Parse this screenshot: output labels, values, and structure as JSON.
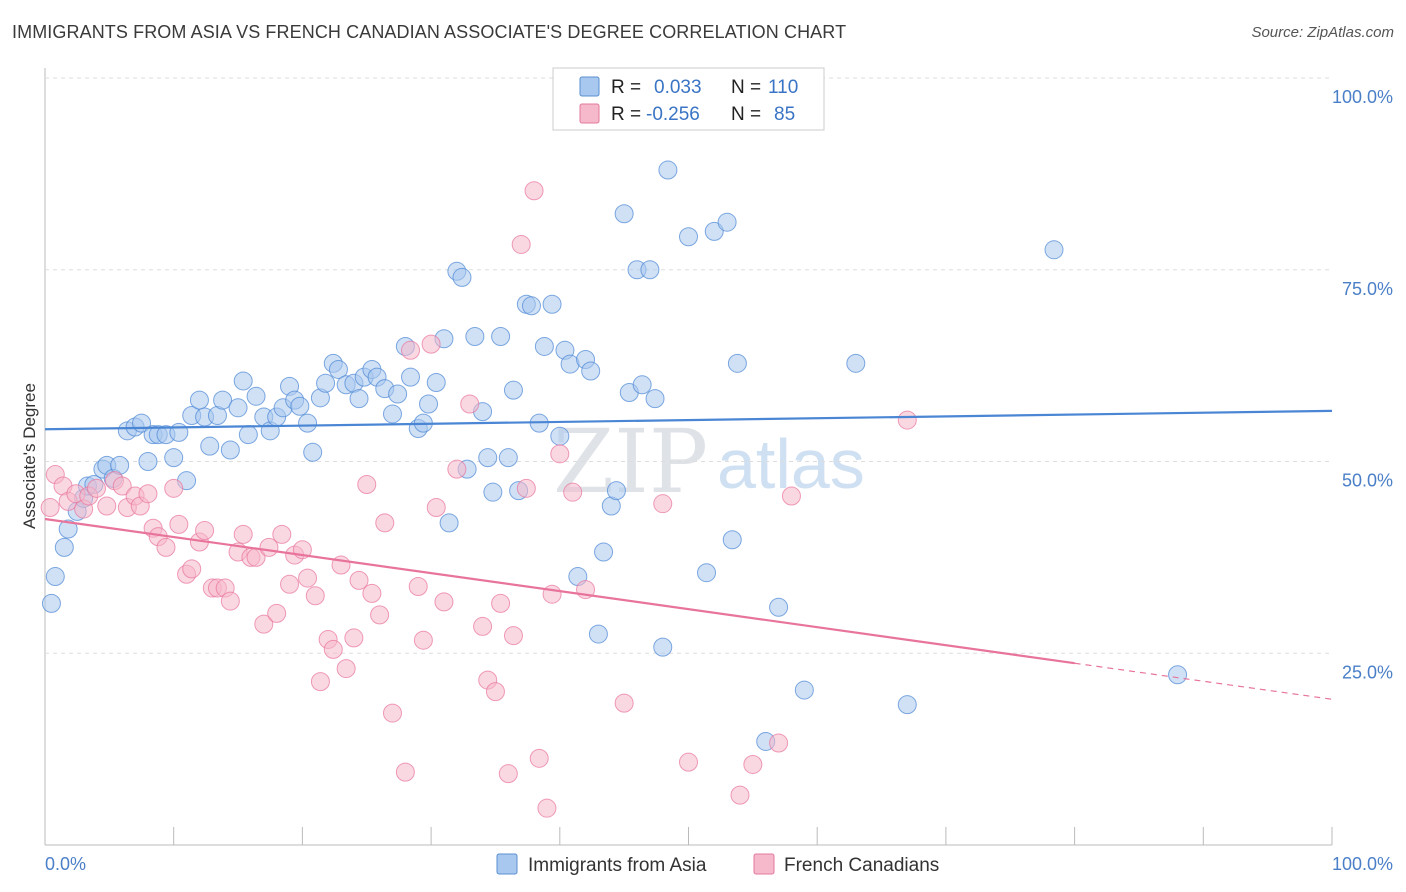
{
  "title": "IMMIGRANTS FROM ASIA VS FRENCH CANADIAN ASSOCIATE'S DEGREE CORRELATION CHART",
  "source": "Source: ZipAtlas.com",
  "watermark": {
    "zip": "ZIP",
    "atlas": "atlas"
  },
  "legend": {
    "r_label": "R =",
    "n_label": "N =",
    "rows": [
      {
        "r": "0.033",
        "n": "110",
        "color": "#a9c8ef"
      },
      {
        "r": "-0.256",
        "n": "85",
        "color": "#f6b8cb"
      }
    ]
  },
  "bottom_legend": [
    {
      "label": "Immigrants from Asia",
      "color": "#a9c8ef"
    },
    {
      "label": "French Canadians",
      "color": "#f6b8cb"
    }
  ],
  "chart_data": {
    "type": "scatter",
    "title": "IMMIGRANTS FROM ASIA VS FRENCH CANADIAN ASSOCIATE'S DEGREE CORRELATION CHART",
    "xlabel": "",
    "ylabel": "Associate's Degree",
    "xlim": [
      0,
      100
    ],
    "ylim": [
      0,
      100
    ],
    "x_tick_labels": [
      "0.0%",
      "100.0%"
    ],
    "y_tick_labels": [
      "25.0%",
      "50.0%",
      "75.0%",
      "100.0%"
    ],
    "y_tick_values": [
      25,
      50,
      75,
      100
    ],
    "series": [
      {
        "name": "Immigrants from Asia",
        "color": "#4a86d4",
        "fill": "#a9c8ef",
        "trend": {
          "x": [
            0,
            100
          ],
          "y": [
            54.2,
            56.6
          ],
          "dashed_from": null
        },
        "points": [
          [
            0.5,
            31.5
          ],
          [
            0.8,
            35
          ],
          [
            1.5,
            38.8
          ],
          [
            1.8,
            41.2
          ],
          [
            2.5,
            43.5
          ],
          [
            3,
            45.2
          ],
          [
            3.3,
            46.8
          ],
          [
            3.8,
            47
          ],
          [
            4.5,
            49
          ],
          [
            4.8,
            49.5
          ],
          [
            5.3,
            47.8
          ],
          [
            5.8,
            49.5
          ],
          [
            6.4,
            54
          ],
          [
            7,
            54.5
          ],
          [
            7.5,
            55
          ],
          [
            8,
            50
          ],
          [
            8.4,
            53.5
          ],
          [
            8.8,
            53.5
          ],
          [
            9.4,
            53.5
          ],
          [
            10,
            50.5
          ],
          [
            10.4,
            53.8
          ],
          [
            11,
            47.5
          ],
          [
            11.4,
            56
          ],
          [
            12,
            58
          ],
          [
            12.4,
            55.8
          ],
          [
            12.8,
            52
          ],
          [
            13.4,
            56
          ],
          [
            13.8,
            58
          ],
          [
            14.4,
            51.5
          ],
          [
            15,
            57
          ],
          [
            15.4,
            60.5
          ],
          [
            15.8,
            53.5
          ],
          [
            16.4,
            58.5
          ],
          [
            17,
            55.8
          ],
          [
            17.5,
            54
          ],
          [
            18,
            55.8
          ],
          [
            18.5,
            57
          ],
          [
            19,
            59.8
          ],
          [
            19.4,
            58
          ],
          [
            19.8,
            57.2
          ],
          [
            20.4,
            55
          ],
          [
            20.8,
            51.2
          ],
          [
            21.4,
            58.3
          ],
          [
            21.8,
            60.2
          ],
          [
            22.4,
            62.8
          ],
          [
            22.8,
            62
          ],
          [
            23.4,
            60
          ],
          [
            24,
            60.2
          ],
          [
            24.4,
            58.2
          ],
          [
            24.8,
            61
          ],
          [
            25.4,
            62
          ],
          [
            25.8,
            61
          ],
          [
            26.4,
            59.5
          ],
          [
            27,
            56.2
          ],
          [
            27.4,
            58.8
          ],
          [
            28,
            65
          ],
          [
            28.4,
            61
          ],
          [
            29,
            54.3
          ],
          [
            29.4,
            55
          ],
          [
            29.8,
            57.5
          ],
          [
            30.4,
            60.3
          ],
          [
            31,
            66
          ],
          [
            31.4,
            42
          ],
          [
            32,
            74.8
          ],
          [
            32.4,
            74
          ],
          [
            32.8,
            49
          ],
          [
            33.4,
            66.3
          ],
          [
            34,
            56.5
          ],
          [
            34.4,
            50.5
          ],
          [
            34.8,
            46
          ],
          [
            35.4,
            66.3
          ],
          [
            36,
            50.5
          ],
          [
            36.4,
            59.3
          ],
          [
            36.8,
            46.2
          ],
          [
            37.4,
            70.5
          ],
          [
            37.8,
            70.3
          ],
          [
            38.4,
            55
          ],
          [
            38.8,
            65
          ],
          [
            39.4,
            70.5
          ],
          [
            40,
            53.3
          ],
          [
            40.4,
            64.5
          ],
          [
            40.8,
            62.7
          ],
          [
            41.4,
            35
          ],
          [
            42,
            63.3
          ],
          [
            42.4,
            61.8
          ],
          [
            43,
            27.5
          ],
          [
            43.4,
            38.2
          ],
          [
            44,
            44.2
          ],
          [
            44.4,
            46.2
          ],
          [
            45,
            82.3
          ],
          [
            45.4,
            59
          ],
          [
            46,
            75
          ],
          [
            46.4,
            60
          ],
          [
            47,
            75
          ],
          [
            47.4,
            58.2
          ],
          [
            48,
            25.8
          ],
          [
            48.4,
            88
          ],
          [
            50,
            79.3
          ],
          [
            51.4,
            35.5
          ],
          [
            52,
            80
          ],
          [
            53,
            81.2
          ],
          [
            53.4,
            39.8
          ],
          [
            53.8,
            62.8
          ],
          [
            56,
            13.5
          ],
          [
            57,
            31
          ],
          [
            59,
            20.2
          ],
          [
            63,
            62.8
          ],
          [
            67,
            18.3
          ],
          [
            78.4,
            77.6
          ],
          [
            88,
            22.2
          ]
        ]
      },
      {
        "name": "French Canadians",
        "color": "#e8749b",
        "fill": "#f6b8cb",
        "trend": {
          "x": [
            0,
            100
          ],
          "y": [
            42.5,
            19.0
          ],
          "dashed_from": 80
        },
        "points": [
          [
            0.4,
            44
          ],
          [
            0.8,
            48.3
          ],
          [
            1.4,
            46.8
          ],
          [
            1.8,
            44.8
          ],
          [
            2.4,
            45.8
          ],
          [
            3,
            43.8
          ],
          [
            3.4,
            45.5
          ],
          [
            4,
            46.5
          ],
          [
            4.8,
            44.2
          ],
          [
            5.4,
            47.5
          ],
          [
            6,
            46.8
          ],
          [
            6.4,
            44
          ],
          [
            7,
            45.5
          ],
          [
            7.4,
            44.2
          ],
          [
            8,
            45.8
          ],
          [
            8.4,
            41.3
          ],
          [
            8.8,
            40.2
          ],
          [
            9.4,
            38.8
          ],
          [
            10,
            46.5
          ],
          [
            10.4,
            41.8
          ],
          [
            11,
            35.3
          ],
          [
            11.4,
            36
          ],
          [
            12,
            39.5
          ],
          [
            12.4,
            41
          ],
          [
            13,
            33.5
          ],
          [
            13.4,
            33.5
          ],
          [
            14,
            33.5
          ],
          [
            14.4,
            31.8
          ],
          [
            15,
            38.2
          ],
          [
            15.4,
            40.5
          ],
          [
            16,
            37.5
          ],
          [
            16.4,
            37.5
          ],
          [
            17,
            28.8
          ],
          [
            17.4,
            38.8
          ],
          [
            18,
            30.2
          ],
          [
            18.4,
            40.5
          ],
          [
            19,
            34
          ],
          [
            19.4,
            37.8
          ],
          [
            20,
            38.5
          ],
          [
            20.4,
            34.8
          ],
          [
            21,
            32.5
          ],
          [
            21.4,
            21.3
          ],
          [
            22,
            26.8
          ],
          [
            22.4,
            25.5
          ],
          [
            23,
            36.5
          ],
          [
            23.4,
            23
          ],
          [
            24,
            27
          ],
          [
            24.4,
            34.5
          ],
          [
            25,
            47
          ],
          [
            25.4,
            32.8
          ],
          [
            26,
            30
          ],
          [
            26.4,
            42
          ],
          [
            27,
            17.2
          ],
          [
            28,
            9.5
          ],
          [
            28.4,
            64.5
          ],
          [
            29,
            33.7
          ],
          [
            29.4,
            26.7
          ],
          [
            30,
            65.3
          ],
          [
            30.4,
            44
          ],
          [
            31,
            31.7
          ],
          [
            32,
            49
          ],
          [
            33,
            57.5
          ],
          [
            34,
            28.5
          ],
          [
            34.4,
            21.5
          ],
          [
            35,
            20
          ],
          [
            35.4,
            31.5
          ],
          [
            36,
            9.3
          ],
          [
            36.4,
            27.3
          ],
          [
            37,
            78.3
          ],
          [
            37.4,
            46.5
          ],
          [
            38,
            85.3
          ],
          [
            38.4,
            11.3
          ],
          [
            39,
            4.8
          ],
          [
            39.4,
            32.7
          ],
          [
            40,
            51
          ],
          [
            41,
            46
          ],
          [
            42,
            33.3
          ],
          [
            45,
            18.5
          ],
          [
            48,
            44.5
          ],
          [
            50,
            10.8
          ],
          [
            54,
            6.5
          ],
          [
            55,
            10.5
          ],
          [
            57,
            13.3
          ],
          [
            58,
            45.5
          ],
          [
            67,
            55.4
          ]
        ]
      }
    ]
  }
}
